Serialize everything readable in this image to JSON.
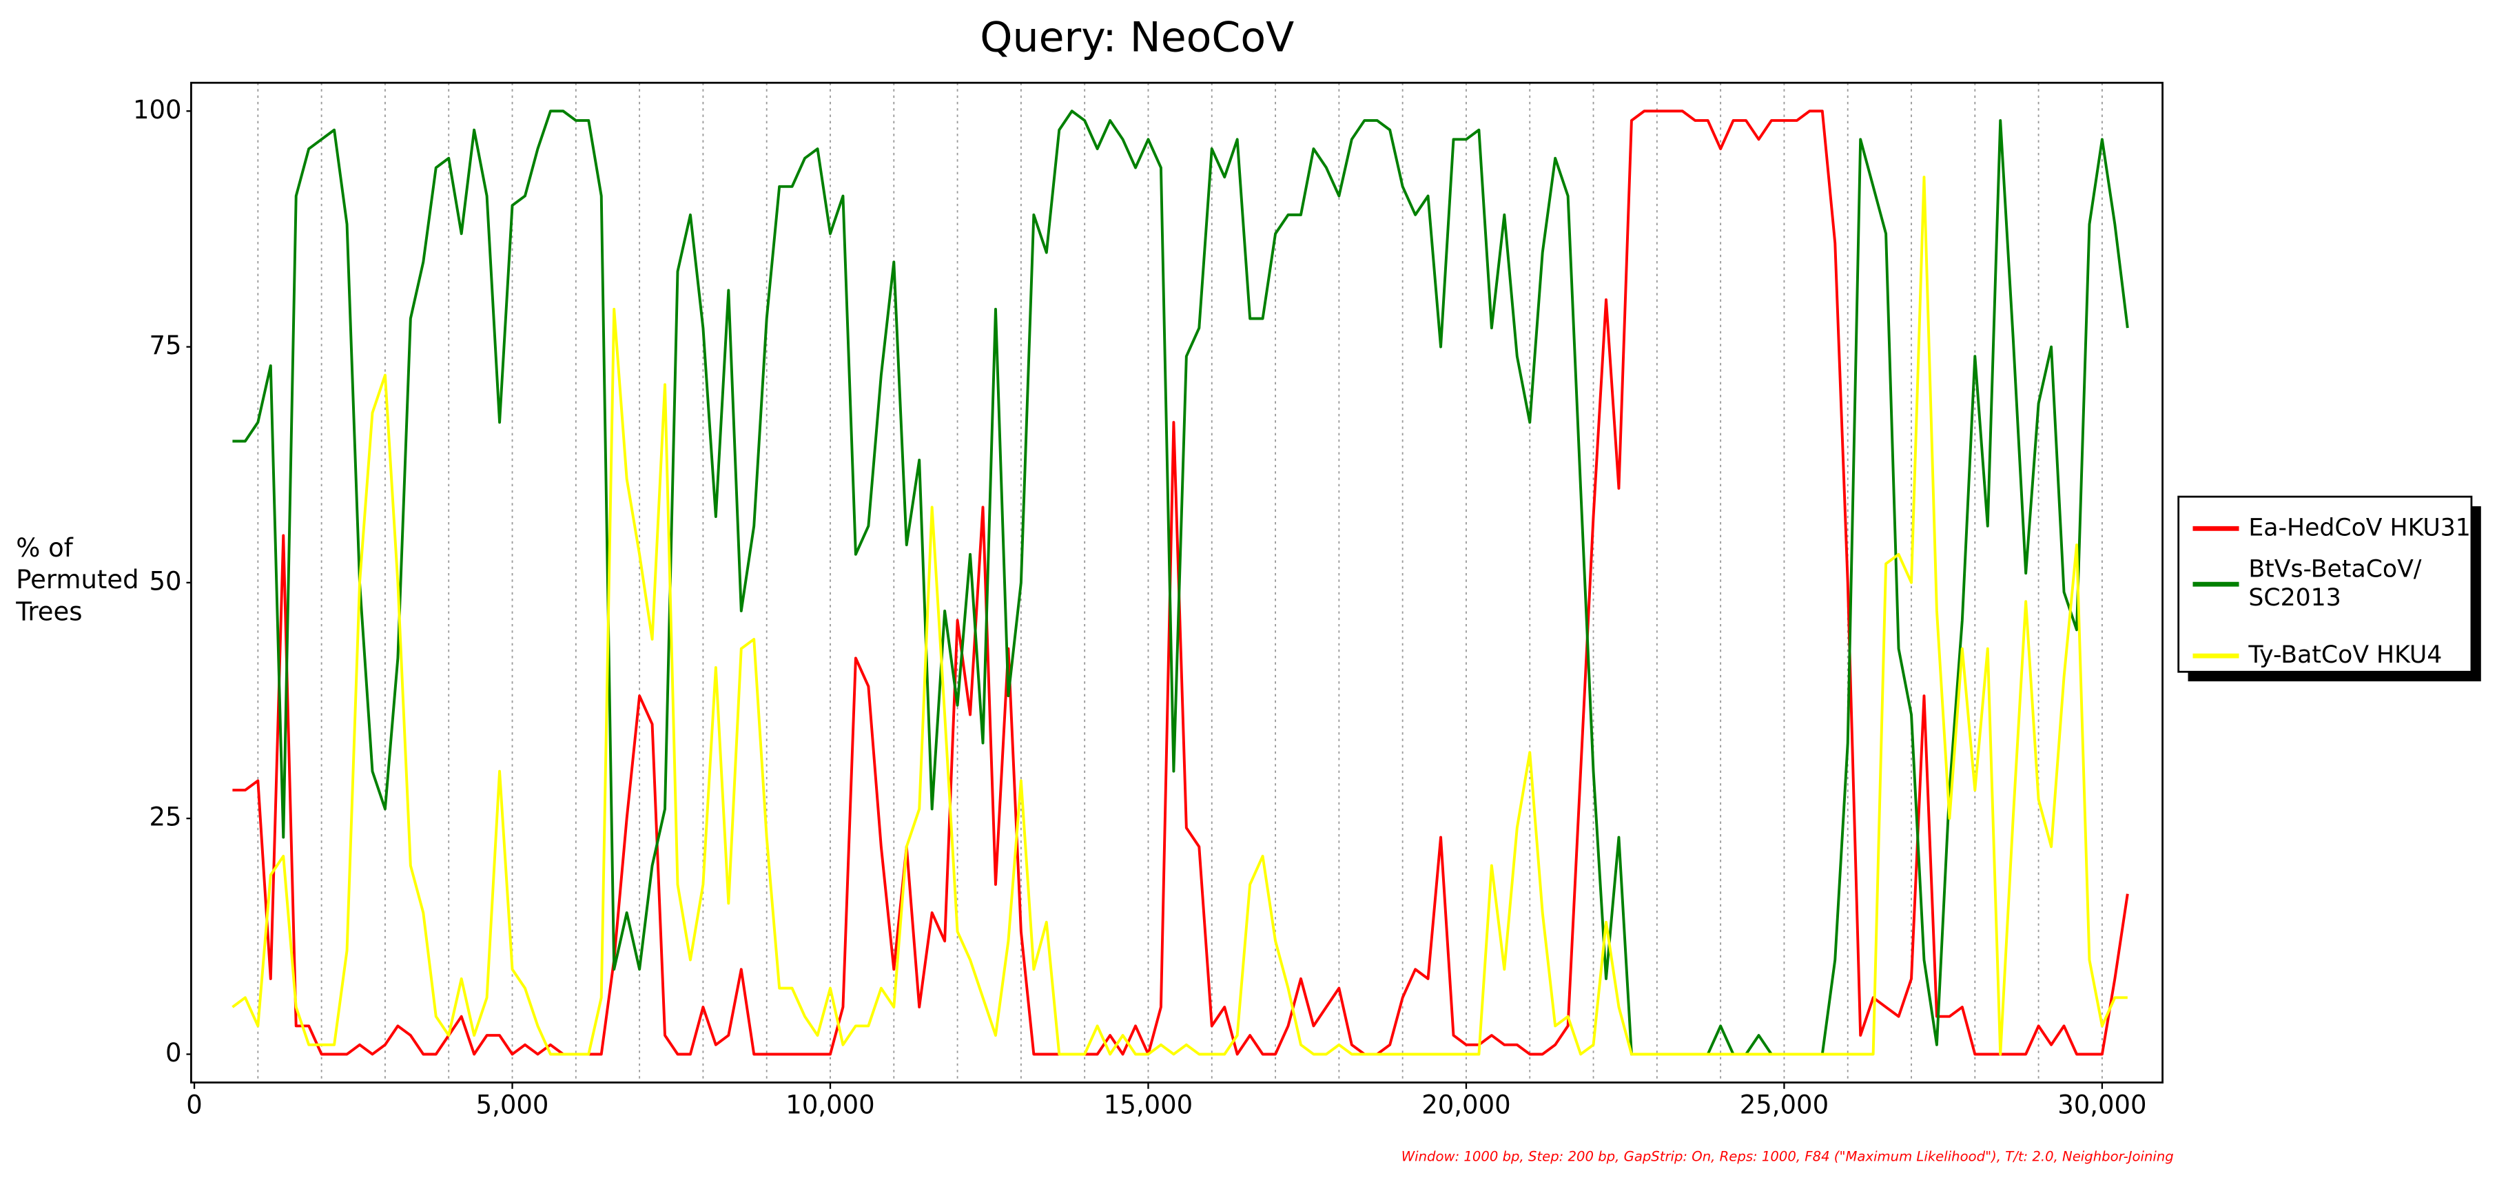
{
  "chart_data": {
    "type": "line",
    "title": "Query: NeoCoV",
    "y_label": [
      "% of",
      "Permuted",
      "Trees"
    ],
    "footnote": "Window: 1000 bp, Step: 200 bp, GapStrip: On, Reps: 1000, F84 (\"Maximum Likelihood\"), T/t: 2.0, Neighbor-Joining",
    "legend": "right",
    "xlim": [
      0,
      31000
    ],
    "ylim": [
      -3,
      103
    ],
    "xticks": [
      0,
      {
        "value": 5000,
        "label": "5,000"
      },
      {
        "value": 10000,
        "label": "10,000"
      },
      {
        "value": 15000,
        "label": "15,000"
      },
      {
        "value": 20000,
        "label": "20,000"
      },
      {
        "value": 25000,
        "label": "25,000"
      },
      {
        "value": 30000,
        "label": "30,000"
      }
    ],
    "yticks": [
      0,
      25,
      50,
      75,
      100
    ],
    "x_grid": [
      1000,
      2000,
      3000,
      4000,
      5000,
      6000,
      7000,
      8000,
      9000,
      10000,
      11000,
      12000,
      13000,
      14000,
      15000,
      16000,
      17000,
      18000,
      19000,
      20000,
      21000,
      22000,
      23000,
      24000,
      25000,
      26000,
      27000,
      28000,
      29000,
      30000
    ],
    "x": [
      600,
      800,
      1000,
      1200,
      1400,
      1600,
      1800,
      2000,
      2200,
      2400,
      2600,
      2800,
      3000,
      3200,
      3400,
      3600,
      3800,
      4000,
      4200,
      4400,
      4600,
      4800,
      5000,
      5200,
      5400,
      5600,
      5800,
      6000,
      6200,
      6400,
      6600,
      6800,
      7000,
      7200,
      7400,
      7600,
      7800,
      8000,
      8200,
      8400,
      8600,
      8800,
      9000,
      9200,
      9400,
      9600,
      9800,
      10000,
      10200,
      10400,
      10600,
      10800,
      11000,
      11200,
      11400,
      11600,
      11800,
      12000,
      12200,
      12400,
      12600,
      12800,
      13000,
      13200,
      13400,
      13600,
      13800,
      14000,
      14200,
      14400,
      14600,
      14800,
      15000,
      15200,
      15400,
      15600,
      15800,
      16000,
      16200,
      16400,
      16600,
      16800,
      17000,
      17200,
      17400,
      17600,
      17800,
      18000,
      18200,
      18400,
      18600,
      18800,
      19000,
      19200,
      19400,
      19600,
      19800,
      20000,
      20200,
      20400,
      20600,
      20800,
      21000,
      21200,
      21400,
      21600,
      21800,
      22000,
      22200,
      22400,
      22600,
      22800,
      23000,
      23200,
      23400,
      23600,
      23800,
      24000,
      24200,
      24400,
      24600,
      24800,
      25000,
      25200,
      25400,
      25600,
      25800,
      26000,
      26200,
      26400,
      26600,
      26800,
      27000,
      27200,
      27400,
      27600,
      27800,
      28000,
      28200,
      28400,
      28600,
      28800,
      29000,
      29200,
      29400,
      29600,
      29800,
      30000,
      30200,
      30400
    ],
    "series": [
      {
        "name": "Ea-HedCoV HKU31",
        "color": "#ff0000",
        "values": [
          28,
          28,
          29,
          8,
          55,
          3,
          3,
          0,
          0,
          0,
          1,
          0,
          1,
          3,
          2,
          0,
          0,
          2,
          4,
          0,
          2,
          2,
          0,
          1,
          0,
          1,
          0,
          0,
          0,
          0,
          10,
          25,
          38,
          35,
          2,
          0,
          0,
          5,
          1,
          2,
          9,
          0,
          0,
          0,
          0,
          0,
          0,
          0,
          5,
          42,
          39,
          22,
          9,
          22,
          5,
          15,
          12,
          46,
          36,
          58,
          18,
          43,
          13,
          0,
          0,
          0,
          0,
          0,
          0,
          2,
          0,
          3,
          0,
          5,
          67,
          24,
          22,
          3,
          5,
          0,
          2,
          0,
          0,
          3,
          8,
          3,
          5,
          7,
          1,
          0,
          0,
          1,
          6,
          9,
          8,
          23,
          2,
          1,
          1,
          2,
          1,
          1,
          0,
          0,
          1,
          3,
          30,
          57,
          80,
          60,
          99,
          100,
          100,
          100,
          100,
          99,
          99,
          96,
          99,
          99,
          97,
          99,
          99,
          99,
          100,
          100,
          86,
          50,
          2,
          6,
          5,
          4,
          8,
          38,
          4,
          4,
          5,
          0,
          0,
          0,
          0,
          0,
          3,
          1,
          3,
          0,
          0,
          0,
          8,
          17
        ]
      },
      {
        "name": "BtVs-BetaCoV/SC2013",
        "color": "#008000",
        "values": [
          65,
          65,
          67,
          73,
          23,
          91,
          96,
          97,
          98,
          88,
          50,
          30,
          26,
          42,
          78,
          84,
          94,
          95,
          87,
          98,
          91,
          67,
          90,
          91,
          96,
          100,
          100,
          99,
          99,
          91,
          9,
          15,
          9,
          20,
          26,
          83,
          89,
          77,
          57,
          81,
          47,
          56,
          78,
          92,
          92,
          95,
          96,
          87,
          91,
          53,
          56,
          72,
          84,
          54,
          63,
          26,
          47,
          37,
          53,
          33,
          79,
          38,
          50,
          89,
          85,
          98,
          100,
          99,
          96,
          99,
          97,
          94,
          97,
          94,
          30,
          74,
          77,
          96,
          93,
          97,
          78,
          78,
          87,
          89,
          89,
          96,
          94,
          91,
          97,
          99,
          99,
          98,
          92,
          89,
          91,
          75,
          97,
          97,
          98,
          77,
          89,
          74,
          67,
          85,
          95,
          91,
          60,
          30,
          8,
          23,
          0,
          0,
          0,
          0,
          0,
          0,
          0,
          3,
          0,
          0,
          2,
          0,
          0,
          0,
          0,
          0,
          10,
          33,
          97,
          92,
          87,
          43,
          36,
          10,
          1,
          28,
          46,
          74,
          56,
          99,
          76,
          51,
          69,
          75,
          49,
          45,
          88,
          97,
          88,
          77
        ]
      },
      {
        "name": "Ty-BatCoV HKU4",
        "color": "#ffff00",
        "values": [
          5,
          6,
          3,
          19,
          21,
          5,
          1,
          1,
          1,
          11,
          50,
          68,
          72,
          50,
          20,
          15,
          4,
          2,
          8,
          2,
          6,
          30,
          9,
          7,
          3,
          0,
          0,
          0,
          0,
          6,
          79,
          61,
          53,
          44,
          71,
          18,
          10,
          18,
          41,
          16,
          43,
          44,
          23,
          7,
          7,
          4,
          2,
          7,
          1,
          3,
          3,
          7,
          5,
          22,
          26,
          58,
          36,
          13,
          10,
          6,
          2,
          12,
          29,
          9,
          14,
          0,
          0,
          0,
          3,
          0,
          2,
          0,
          0,
          1,
          0,
          1,
          0,
          0,
          0,
          2,
          18,
          21,
          12,
          7,
          1,
          0,
          0,
          1,
          0,
          0,
          0,
          0,
          0,
          0,
          0,
          0,
          0,
          0,
          0,
          20,
          9,
          24,
          32,
          15,
          3,
          4,
          0,
          1,
          14,
          5,
          0,
          0,
          0,
          0,
          0,
          0,
          0,
          0,
          0,
          0,
          0,
          0,
          0,
          0,
          0,
          0,
          0,
          0,
          0,
          0,
          52,
          53,
          50,
          93,
          47,
          25,
          43,
          28,
          43,
          0,
          25,
          48,
          27,
          22,
          40,
          54,
          10,
          3,
          6,
          6
        ]
      }
    ]
  }
}
